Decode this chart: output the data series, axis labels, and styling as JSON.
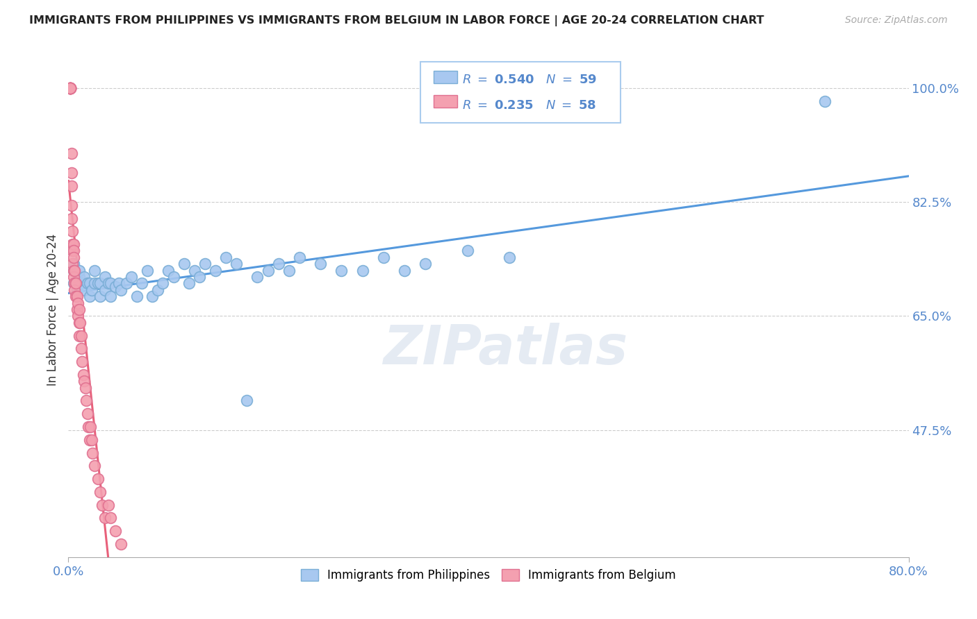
{
  "title": "IMMIGRANTS FROM PHILIPPINES VS IMMIGRANTS FROM BELGIUM IN LABOR FORCE | AGE 20-24 CORRELATION CHART",
  "source": "Source: ZipAtlas.com",
  "ylabel": "In Labor Force | Age 20-24",
  "xmin": 0.0,
  "xmax": 0.8,
  "ymin": 0.28,
  "ymax": 1.04,
  "yticks": [
    0.475,
    0.65,
    0.825,
    1.0
  ],
  "ytick_labels": [
    "47.5%",
    "65.0%",
    "82.5%",
    "100.0%"
  ],
  "xtick_labels": [
    "0.0%",
    "80.0%"
  ],
  "r_philippines": 0.54,
  "n_philippines": 59,
  "r_belgium": 0.235,
  "n_belgium": 58,
  "philippines_color": "#a8c8f0",
  "philippines_edge": "#7aaed6",
  "belgium_color": "#f4a0b0",
  "belgium_edge": "#e07090",
  "line_philippines": "#5599dd",
  "line_belgium": "#e8607a",
  "philippines_x": [
    0.005,
    0.005,
    0.005,
    0.008,
    0.01,
    0.01,
    0.012,
    0.015,
    0.015,
    0.018,
    0.02,
    0.02,
    0.022,
    0.025,
    0.025,
    0.028,
    0.03,
    0.03,
    0.035,
    0.035,
    0.038,
    0.04,
    0.04,
    0.045,
    0.048,
    0.05,
    0.055,
    0.06,
    0.065,
    0.07,
    0.075,
    0.08,
    0.085,
    0.09,
    0.095,
    0.1,
    0.11,
    0.115,
    0.12,
    0.125,
    0.13,
    0.14,
    0.15,
    0.16,
    0.17,
    0.18,
    0.19,
    0.2,
    0.21,
    0.22,
    0.24,
    0.26,
    0.28,
    0.3,
    0.32,
    0.34,
    0.38,
    0.42,
    0.72
  ],
  "philippines_y": [
    0.7,
    0.72,
    0.73,
    0.69,
    0.71,
    0.72,
    0.7,
    0.69,
    0.71,
    0.7,
    0.68,
    0.7,
    0.69,
    0.7,
    0.72,
    0.7,
    0.68,
    0.7,
    0.69,
    0.71,
    0.7,
    0.68,
    0.7,
    0.695,
    0.7,
    0.69,
    0.7,
    0.71,
    0.68,
    0.7,
    0.72,
    0.68,
    0.69,
    0.7,
    0.72,
    0.71,
    0.73,
    0.7,
    0.72,
    0.71,
    0.73,
    0.72,
    0.74,
    0.73,
    0.52,
    0.71,
    0.72,
    0.73,
    0.72,
    0.74,
    0.73,
    0.72,
    0.72,
    0.74,
    0.72,
    0.73,
    0.75,
    0.74,
    0.98
  ],
  "belgium_x": [
    0.002,
    0.002,
    0.002,
    0.002,
    0.002,
    0.002,
    0.002,
    0.002,
    0.002,
    0.003,
    0.003,
    0.003,
    0.003,
    0.003,
    0.004,
    0.004,
    0.004,
    0.004,
    0.005,
    0.005,
    0.005,
    0.005,
    0.005,
    0.006,
    0.006,
    0.006,
    0.007,
    0.007,
    0.008,
    0.008,
    0.009,
    0.009,
    0.01,
    0.01,
    0.01,
    0.011,
    0.012,
    0.012,
    0.013,
    0.014,
    0.015,
    0.016,
    0.017,
    0.018,
    0.019,
    0.02,
    0.021,
    0.022,
    0.023,
    0.025,
    0.028,
    0.03,
    0.032,
    0.035,
    0.038,
    0.04,
    0.045,
    0.05
  ],
  "belgium_y": [
    1.0,
    1.0,
    1.0,
    1.0,
    1.0,
    1.0,
    1.0,
    1.0,
    1.0,
    0.9,
    0.87,
    0.85,
    0.82,
    0.8,
    0.78,
    0.76,
    0.75,
    0.73,
    0.76,
    0.75,
    0.74,
    0.72,
    0.71,
    0.72,
    0.7,
    0.69,
    0.7,
    0.68,
    0.68,
    0.66,
    0.67,
    0.65,
    0.66,
    0.64,
    0.62,
    0.64,
    0.62,
    0.6,
    0.58,
    0.56,
    0.55,
    0.54,
    0.52,
    0.5,
    0.48,
    0.46,
    0.48,
    0.46,
    0.44,
    0.42,
    0.4,
    0.38,
    0.36,
    0.34,
    0.36,
    0.34,
    0.32,
    0.3
  ]
}
